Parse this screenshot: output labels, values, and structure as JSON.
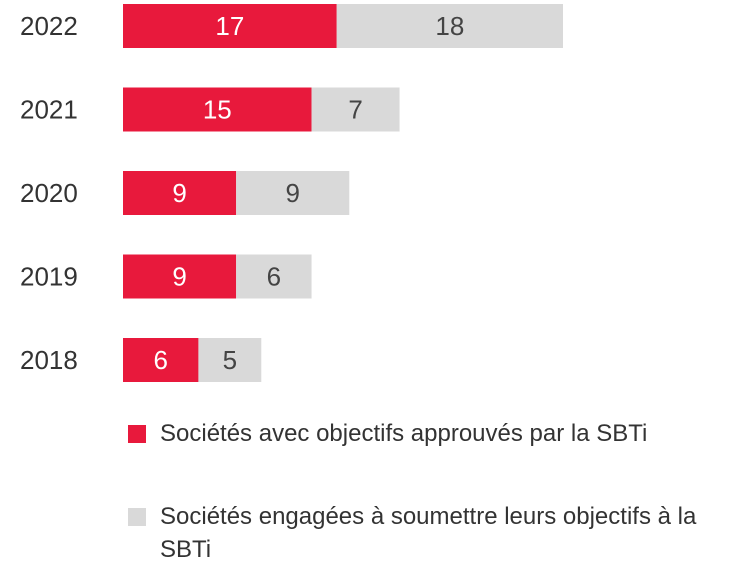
{
  "chart_data": {
    "type": "stacked-bar-horizontal",
    "categories": [
      "2022",
      "2021",
      "2020",
      "2019",
      "2018"
    ],
    "series": [
      {
        "name": "Sociétés avec objectifs approuvés par la SBTi",
        "color": "#e8193c",
        "values": [
          17,
          15,
          9,
          9,
          6
        ]
      },
      {
        "name": "Sociétés engagées à soumettre leurs objectifs à la SBTi",
        "color": "#d9d9d9",
        "values": [
          18,
          7,
          9,
          6,
          5
        ]
      }
    ]
  }
}
